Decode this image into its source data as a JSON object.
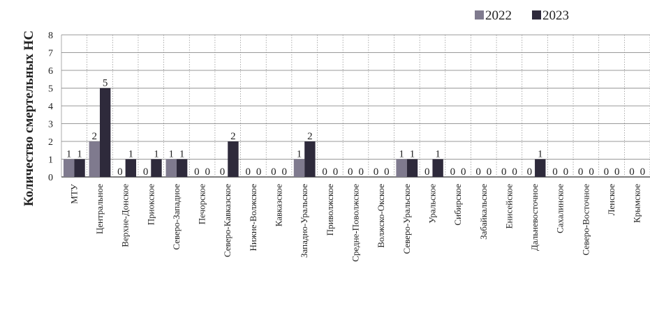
{
  "chart_data": {
    "type": "bar",
    "ylabel": "Количество смертельных НС",
    "xlabel": "",
    "ylim": [
      0,
      8
    ],
    "yticks": [
      "0",
      "1",
      "2",
      "3",
      "4",
      "5",
      "6",
      "7",
      "8"
    ],
    "grid": true,
    "legend_position": "top-right",
    "categories": [
      "МТУ",
      "Центральное",
      "Верхне-Донское",
      "Приокское",
      "Северо-Западное",
      "Печорское",
      "Северо-Кавказское",
      "Нижне-Волжское",
      "Кавказское",
      "Западно-Уральское",
      "Приволжское",
      "Средне-Поволжское",
      "Волжско-Окское",
      "Северо-Уральское",
      "Уральское",
      "Сибирское",
      "Забайкальское",
      "Енисейское",
      "Дальневосточное",
      "Сахалинское",
      "Северо-Восточное",
      "Ленское",
      "Крымское"
    ],
    "series": [
      {
        "name": "2022",
        "color": "#7f7a8e",
        "values": [
          1,
          2,
          0,
          0,
          1,
          0,
          0,
          0,
          0,
          1,
          0,
          0,
          0,
          1,
          0,
          0,
          0,
          0,
          0,
          0,
          0,
          0,
          0
        ]
      },
      {
        "name": "2023",
        "color": "#2e2a3b",
        "values": [
          1,
          5,
          1,
          1,
          1,
          0,
          2,
          0,
          0,
          2,
          0,
          0,
          0,
          1,
          1,
          0,
          0,
          0,
          1,
          0,
          0,
          0,
          0
        ]
      }
    ]
  }
}
